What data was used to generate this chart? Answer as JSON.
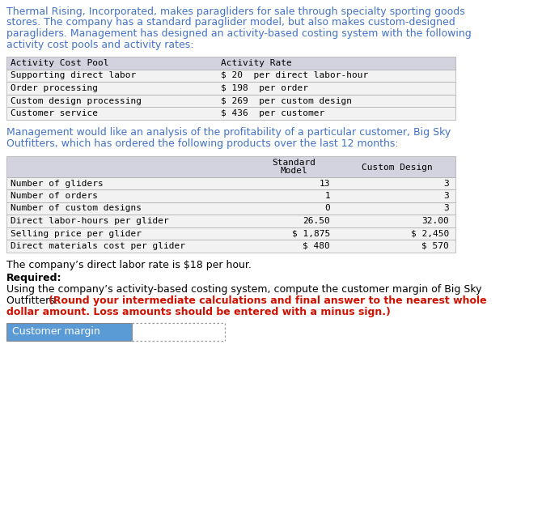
{
  "intro_text_lines": [
    "Thermal Rising, Incorporated, makes paragliders for sale through specialty sporting goods",
    "stores. The company has a standard paraglider model, but also makes custom-designed",
    "paragliders. Management has designed an activity-based costing system with the following",
    "activity cost pools and activity rates:"
  ],
  "table1_header": [
    "Activity Cost Pool",
    "Activity Rate"
  ],
  "table1_rows": [
    [
      "Supporting direct labor",
      "$ 20  per direct labor-hour"
    ],
    [
      "Order processing",
      "$ 198  per order"
    ],
    [
      "Custom design processing",
      "$ 269  per custom design"
    ],
    [
      "Customer service",
      "$ 436  per customer"
    ]
  ],
  "middle_text_lines": [
    "Management would like an analysis of the profitability of a particular customer, Big Sky",
    "Outfitters, which has ordered the following products over the last 12 months:"
  ],
  "table2_rows": [
    [
      "Number of gliders",
      "13",
      "3"
    ],
    [
      "Number of orders",
      "1",
      "3"
    ],
    [
      "Number of custom designs",
      "0",
      "3"
    ],
    [
      "Direct labor-hours per glider",
      "26.50",
      "32.00"
    ],
    [
      "Selling price per glider",
      "$ 1,875",
      "$ 2,450"
    ],
    [
      "Direct materials cost per glider",
      "$ 480",
      "$ 570"
    ]
  ],
  "labor_text": "The company’s direct labor rate is $18 per hour.",
  "required_label": "Required:",
  "required_normal": "Using the company’s activity-based costing system, compute the customer margin of Big Sky",
  "required_normal2": "Outfitters. ",
  "required_bold_red_1": "(Round your intermediate calculations and final answer to the nearest whole",
  "required_bold_red_2": "dollar amount. Loss amounts should be entered with a minus sign.)",
  "customer_margin_label": "Customer margin",
  "bg_color": "#ffffff",
  "table_header_bg": "#d3d3e0",
  "table_row_bg": "#f2f2f2",
  "table_border_color": "#aaaaaa",
  "intro_text_color": "#4472c4",
  "middle_text_color": "#4472c4",
  "text_color": "#000000",
  "red_color": "#cc1100",
  "label_bg": "#5b9bd5",
  "label_text_color": "#ffffff",
  "mono_font": "DejaVu Sans Mono",
  "normal_font": "DejaVu Sans"
}
